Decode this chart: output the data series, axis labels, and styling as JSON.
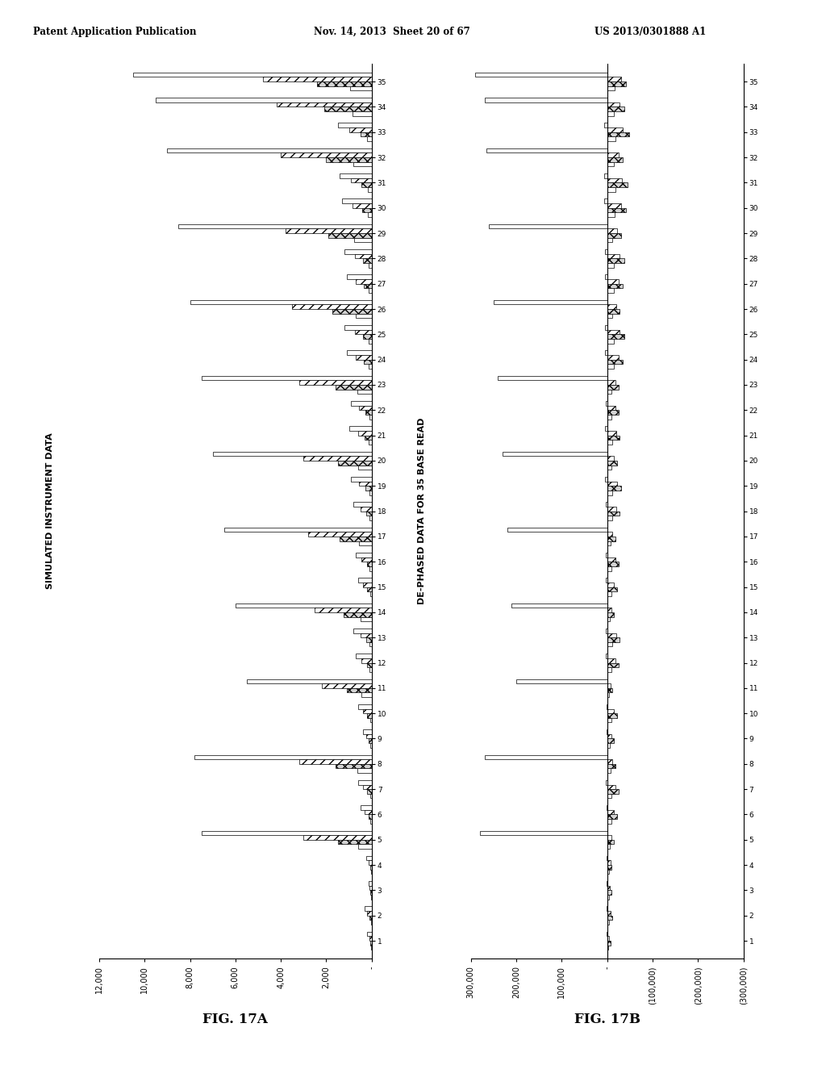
{
  "header_left": "Patent Application Publication",
  "header_mid": "Nov. 14, 2013  Sheet 20 of 67",
  "header_right": "US 2013/0301888 A1",
  "fig17a_title": "SIMULATED INSTRUMENT DATA",
  "fig17b_title": "DE-PHASED DATA FOR 35 BASE READ",
  "fig17a_label": "FIG. 17A",
  "fig17b_label": "FIG. 17B",
  "n_cycles": 35,
  "fig17a_xlim": [
    0,
    12000
  ],
  "fig17a_xticks": [
    0,
    2000,
    4000,
    6000,
    8000,
    10000,
    12000
  ],
  "fig17a_xticklabels": [
    "-",
    "2,000",
    "4,000",
    "6,000",
    "8,000",
    "10,000",
    "12,000"
  ],
  "fig17b_xlim": [
    -300000,
    300000
  ],
  "fig17b_xticks": [
    -300000,
    -200000,
    -100000,
    0,
    100000,
    200000,
    300000
  ],
  "fig17b_xticklabels": [
    "(300,000)",
    "(200,000)",
    "(100,000)",
    "-",
    "100,000",
    "200,000",
    "300,000"
  ],
  "background_color": "#ffffff",
  "fig17a_data": {
    "ch1": [
      200,
      300,
      150,
      250,
      7500,
      500,
      600,
      7800,
      400,
      600,
      5500,
      700,
      800,
      6000,
      600,
      700,
      6500,
      800,
      900,
      7000,
      1000,
      900,
      7500,
      1100,
      1200,
      8000,
      1100,
      1200,
      8500,
      1300,
      1400,
      9000,
      1500,
      9500,
      10500
    ],
    "ch2": [
      100,
      200,
      100,
      150,
      3000,
      300,
      400,
      3200,
      250,
      400,
      2200,
      450,
      500,
      2500,
      400,
      450,
      2800,
      500,
      550,
      3000,
      600,
      550,
      3200,
      700,
      750,
      3500,
      700,
      750,
      3800,
      850,
      900,
      4000,
      1000,
      4200,
      4800
    ],
    "ch3": [
      50,
      100,
      60,
      80,
      1500,
      150,
      200,
      1600,
      120,
      200,
      1100,
      220,
      250,
      1250,
      200,
      220,
      1400,
      250,
      270,
      1500,
      300,
      270,
      1600,
      350,
      370,
      1750,
      350,
      370,
      1900,
      420,
      450,
      2000,
      500,
      2100,
      2400
    ],
    "ch4": [
      20,
      40,
      25,
      30,
      600,
      60,
      80,
      640,
      50,
      80,
      440,
      90,
      100,
      500,
      80,
      90,
      560,
      100,
      110,
      600,
      120,
      110,
      640,
      140,
      150,
      700,
      140,
      150,
      760,
      170,
      180,
      800,
      200,
      840,
      960
    ]
  },
  "fig17b_data": {
    "ch1": [
      500,
      600,
      400,
      500,
      280000,
      2000,
      2500,
      270000,
      1500,
      2000,
      200000,
      3000,
      3500,
      210000,
      2500,
      3000,
      220000,
      3500,
      4000,
      230000,
      4000,
      3500,
      240000,
      5000,
      5500,
      250000,
      5000,
      5500,
      260000,
      6000,
      6500,
      265000,
      7000,
      270000,
      290000
    ],
    "ch2": [
      -5000,
      -8000,
      -6000,
      -7000,
      -10000,
      -15000,
      -18000,
      -12000,
      -10000,
      -15000,
      -8000,
      -18000,
      -20000,
      -10000,
      -15000,
      -18000,
      -12000,
      -20000,
      -22000,
      -15000,
      -20000,
      -18000,
      -18000,
      -25000,
      -28000,
      -20000,
      -25000,
      -28000,
      -22000,
      -30000,
      -32000,
      -25000,
      -35000,
      -28000,
      -30000
    ],
    "ch3": [
      -8000,
      -12000,
      -9000,
      -10000,
      -15000,
      -22000,
      -25000,
      -18000,
      -15000,
      -22000,
      -12000,
      -25000,
      -28000,
      -15000,
      -22000,
      -25000,
      -18000,
      -28000,
      -30000,
      -22000,
      -28000,
      -25000,
      -25000,
      -35000,
      -38000,
      -28000,
      -35000,
      -38000,
      -30000,
      -42000,
      -45000,
      -35000,
      -48000,
      -38000,
      -42000
    ],
    "ch4": [
      -3000,
      -5000,
      -4000,
      -4500,
      -6000,
      -9000,
      -10000,
      -7000,
      -6000,
      -9000,
      -5000,
      -10000,
      -11000,
      -6000,
      -9000,
      -10000,
      -7000,
      -11000,
      -12000,
      -9000,
      -11000,
      -10000,
      -10000,
      -14000,
      -15000,
      -11000,
      -14000,
      -15000,
      -12000,
      -17000,
      -18000,
      -14000,
      -19000,
      -15000,
      -17000
    ]
  }
}
